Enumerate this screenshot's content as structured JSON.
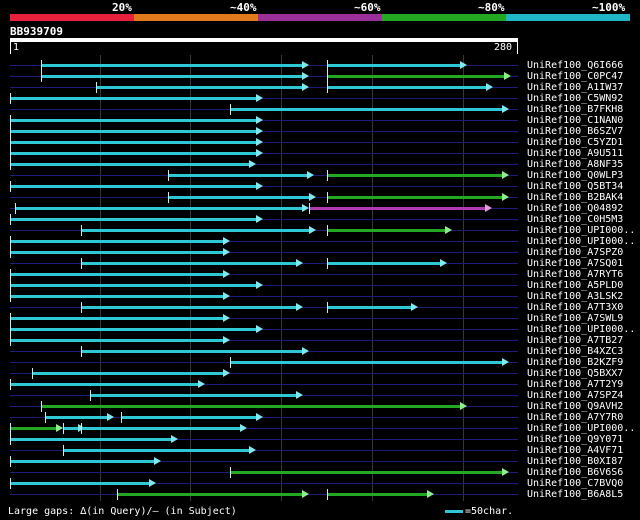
{
  "header": {
    "labels": [
      "20%",
      "~40%",
      "~60%",
      "~80%",
      "~100%"
    ],
    "colors": [
      "#e8203c",
      "#e07a1c",
      "#9a2f9a",
      "#22a822",
      "#20b6c6"
    ]
  },
  "query": {
    "id": "BB939709",
    "start_label": "1",
    "end_label": "280",
    "length": 280
  },
  "hits": [
    {
      "label": "UniRef100_Q6I666",
      "segs": [
        [
          18,
          165,
          "c"
        ],
        [
          175,
          252,
          "c"
        ]
      ]
    },
    {
      "label": "UniRef100_C0PC47",
      "segs": [
        [
          18,
          165,
          "c"
        ],
        [
          175,
          276,
          "g"
        ]
      ]
    },
    {
      "label": "UniRef100_A1IW37",
      "segs": [
        [
          48,
          165,
          "c"
        ],
        [
          175,
          266,
          "c"
        ]
      ]
    },
    {
      "label": "UniRef100_C5WN92",
      "segs": [
        [
          1,
          140,
          "c"
        ]
      ]
    },
    {
      "label": "UniRef100_B7FKH8",
      "segs": [
        [
          122,
          275,
          "c"
        ]
      ]
    },
    {
      "label": "UniRef100_C1NAN0",
      "segs": [
        [
          1,
          140,
          "c"
        ]
      ]
    },
    {
      "label": "UniRef100_B6SZV7",
      "segs": [
        [
          1,
          140,
          "c"
        ]
      ]
    },
    {
      "label": "UniRef100_C5YZD1",
      "segs": [
        [
          1,
          140,
          "c"
        ]
      ]
    },
    {
      "label": "UniRef100_A9U511",
      "segs": [
        [
          1,
          140,
          "c"
        ]
      ]
    },
    {
      "label": "UniRef100_A8NF35",
      "segs": [
        [
          1,
          136,
          "c"
        ]
      ]
    },
    {
      "label": "UniRef100_Q0WLP3",
      "segs": [
        [
          88,
          168,
          "c"
        ],
        [
          175,
          275,
          "g"
        ]
      ]
    },
    {
      "label": "UniRef100_Q5BT34",
      "segs": [
        [
          1,
          140,
          "c"
        ]
      ]
    },
    {
      "label": "UniRef100_B2BAK4",
      "segs": [
        [
          88,
          169,
          "c"
        ],
        [
          175,
          275,
          "g"
        ]
      ]
    },
    {
      "label": "UniRef100_Q04892",
      "segs": [
        [
          4,
          165,
          "c"
        ],
        [
          165,
          266,
          "m"
        ]
      ]
    },
    {
      "label": "UniRef100_C0H5M3",
      "segs": [
        [
          1,
          140,
          "c"
        ]
      ]
    },
    {
      "label": "UniRef100_UPI000..",
      "segs": [
        [
          40,
          169,
          "c"
        ],
        [
          175,
          244,
          "g"
        ]
      ]
    },
    {
      "label": "UniRef100_UPI000..",
      "segs": [
        [
          1,
          122,
          "c"
        ]
      ]
    },
    {
      "label": "UniRef100_A7SPZ0",
      "segs": [
        [
          1,
          122,
          "c"
        ]
      ]
    },
    {
      "label": "UniRef100_A7SQ01",
      "segs": [
        [
          40,
          162,
          "c"
        ],
        [
          175,
          241,
          "c"
        ]
      ]
    },
    {
      "label": "UniRef100_A7RYT6",
      "segs": [
        [
          1,
          122,
          "c"
        ]
      ]
    },
    {
      "label": "UniRef100_A5PLD0",
      "segs": [
        [
          1,
          140,
          "c"
        ]
      ]
    },
    {
      "label": "UniRef100_A3LSK2",
      "segs": [
        [
          1,
          122,
          "c"
        ]
      ]
    },
    {
      "label": "UniRef100_A7T3X0",
      "segs": [
        [
          40,
          162,
          "c"
        ],
        [
          175,
          225,
          "c"
        ]
      ]
    },
    {
      "label": "UniRef100_A7SWL9",
      "segs": [
        [
          1,
          122,
          "c"
        ]
      ]
    },
    {
      "label": "UniRef100_UPI000..",
      "segs": [
        [
          1,
          140,
          "c"
        ]
      ]
    },
    {
      "label": "UniRef100_A7TB27",
      "segs": [
        [
          1,
          122,
          "c"
        ]
      ]
    },
    {
      "label": "UniRef100_B4XZC3",
      "segs": [
        [
          40,
          165,
          "c"
        ]
      ]
    },
    {
      "label": "UniRef100_B2KZF9",
      "segs": [
        [
          122,
          275,
          "c"
        ]
      ]
    },
    {
      "label": "UniRef100_Q5BXX7",
      "segs": [
        [
          13,
          122,
          "c"
        ]
      ]
    },
    {
      "label": "UniRef100_A7T2Y9",
      "segs": [
        [
          1,
          108,
          "c"
        ]
      ]
    },
    {
      "label": "UniRef100_A7SPZ4",
      "segs": [
        [
          45,
          162,
          "c"
        ]
      ]
    },
    {
      "label": "UniRef100_Q9AVH2",
      "segs": [
        [
          18,
          252,
          "g"
        ]
      ]
    },
    {
      "label": "UniRef100_A7Y7R0",
      "segs": [
        [
          20,
          58,
          "c"
        ],
        [
          62,
          140,
          "c"
        ]
      ]
    },
    {
      "label": "UniRef100_UPI000..",
      "segs": [
        [
          1,
          30,
          "g"
        ],
        [
          30,
          42,
          "c"
        ],
        [
          40,
          131,
          "c"
        ]
      ]
    },
    {
      "label": "UniRef100_Q9Y071",
      "segs": [
        [
          1,
          93,
          "c"
        ]
      ]
    },
    {
      "label": "UniRef100_A4VF71",
      "segs": [
        [
          30,
          136,
          "c"
        ]
      ]
    },
    {
      "label": "UniRef100_B0XI87",
      "segs": [
        [
          1,
          84,
          "c"
        ]
      ]
    },
    {
      "label": "UniRef100_B6V6S6",
      "segs": [
        [
          122,
          275,
          "g"
        ]
      ]
    },
    {
      "label": "UniRef100_C7BVQ0",
      "segs": [
        [
          1,
          81,
          "c"
        ]
      ]
    },
    {
      "label": "UniRef100_B6A8L5",
      "segs": [
        [
          60,
          165,
          "g"
        ],
        [
          175,
          234,
          "g"
        ]
      ]
    }
  ],
  "footer": {
    "legend_text": "Large gaps: ∆(in Query)/– (in Subject)",
    "scale_text": "=50char."
  }
}
